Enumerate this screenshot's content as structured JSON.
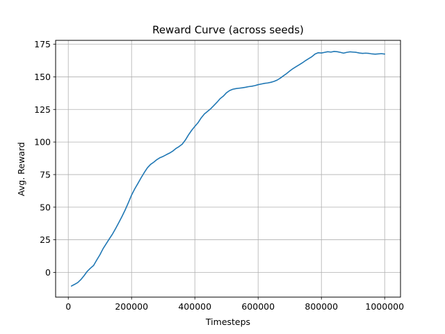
{
  "chart_data": {
    "type": "line",
    "title": "Reward Curve (across seeds)",
    "xlabel": "Timesteps",
    "ylabel": "Avg. Reward",
    "xlim": [
      -40000,
      1050000
    ],
    "ylim": [
      -19,
      178
    ],
    "xticks": [
      0,
      200000,
      400000,
      600000,
      800000,
      1000000
    ],
    "yticks": [
      0,
      25,
      50,
      75,
      100,
      125,
      150,
      175
    ],
    "grid": true,
    "colors": {
      "line": "#1f77b4",
      "grid": "#b0b0b0",
      "axes": "#000000"
    },
    "series": [
      {
        "x": [
          10000,
          20000,
          30000,
          40000,
          50000,
          60000,
          70000,
          80000,
          90000,
          100000,
          110000,
          120000,
          130000,
          140000,
          150000,
          160000,
          170000,
          180000,
          190000,
          200000,
          210000,
          220000,
          230000,
          240000,
          250000,
          260000,
          270000,
          280000,
          290000,
          300000,
          310000,
          320000,
          330000,
          340000,
          350000,
          360000,
          370000,
          380000,
          390000,
          400000,
          410000,
          420000,
          430000,
          440000,
          450000,
          460000,
          470000,
          480000,
          490000,
          500000,
          510000,
          520000,
          530000,
          540000,
          550000,
          560000,
          570000,
          580000,
          590000,
          600000,
          610000,
          620000,
          630000,
          640000,
          650000,
          660000,
          670000,
          680000,
          690000,
          700000,
          710000,
          720000,
          730000,
          740000,
          750000,
          760000,
          770000,
          780000,
          790000,
          800000,
          810000,
          820000,
          830000,
          840000,
          850000,
          860000,
          870000,
          880000,
          890000,
          900000,
          910000,
          920000,
          930000,
          940000,
          950000,
          960000,
          970000,
          980000,
          990000,
          1000000
        ],
        "values": [
          -10.5,
          -9.2,
          -7.8,
          -5.5,
          -2.5,
          0.8,
          3.2,
          5.3,
          9.5,
          13.5,
          18.2,
          22.0,
          25.8,
          29.5,
          33.8,
          38.3,
          43.0,
          48.0,
          53.5,
          59.3,
          64.0,
          68.2,
          72.5,
          76.5,
          80.2,
          82.8,
          84.5,
          86.5,
          88.0,
          89.0,
          90.3,
          91.5,
          93.0,
          95.0,
          96.5,
          98.3,
          101.5,
          105.5,
          109.0,
          112.0,
          114.8,
          118.5,
          121.5,
          123.5,
          125.5,
          128.0,
          130.5,
          133.3,
          135.2,
          137.8,
          139.5,
          140.5,
          141.0,
          141.3,
          141.6,
          142.0,
          142.5,
          142.8,
          143.3,
          144.0,
          144.5,
          145.0,
          145.3,
          145.8,
          146.5,
          147.5,
          149.0,
          150.8,
          152.5,
          154.5,
          156.3,
          157.8,
          159.3,
          160.8,
          162.5,
          164.0,
          165.5,
          167.5,
          168.5,
          168.3,
          168.8,
          169.3,
          169.0,
          169.5,
          169.3,
          168.8,
          168.2,
          168.8,
          169.2,
          169.0,
          168.8,
          168.3,
          168.0,
          168.2,
          168.0,
          167.6,
          167.4,
          167.6,
          167.8,
          167.5
        ]
      }
    ]
  }
}
